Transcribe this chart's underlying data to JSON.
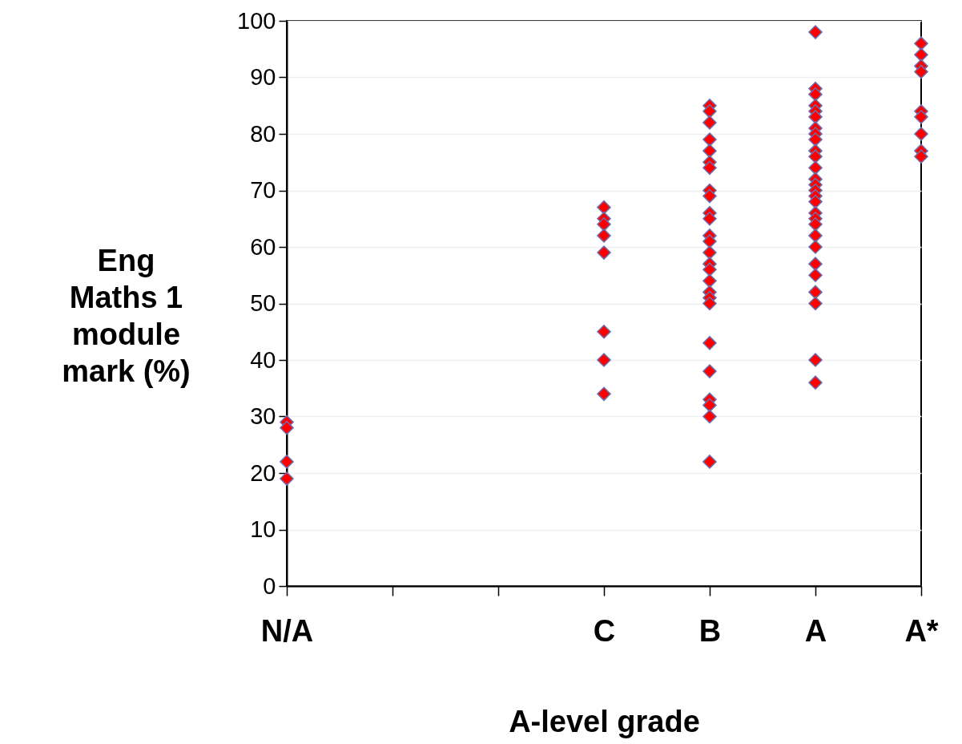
{
  "chart_data": {
    "type": "scatter",
    "xlabel": "A-level grade",
    "ylabel": "Eng\nMaths 1\nmodule\nmark (%)",
    "categories": [
      "N/A",
      null,
      null,
      "C",
      "B",
      "A",
      "A*"
    ],
    "series": [
      {
        "color": "#ff0000",
        "x": [
          "N/A",
          "N/A",
          "N/A",
          "N/A",
          "C",
          "C",
          "C",
          "C",
          "C",
          "C",
          "C",
          "C",
          "B",
          "B",
          "B",
          "B",
          "B",
          "B",
          "B",
          "B",
          "B",
          "B",
          "B",
          "B",
          "B",
          "B",
          "B",
          "B",
          "B",
          "B",
          "B",
          "B",
          "B",
          "B",
          "B",
          "B",
          "B",
          "B",
          "A",
          "A",
          "A",
          "A",
          "A",
          "A",
          "A",
          "A",
          "A",
          "A",
          "A",
          "A",
          "A",
          "A",
          "A",
          "A",
          "A",
          "A",
          "A",
          "A",
          "A",
          "A",
          "A",
          "A",
          "A",
          "A",
          "A",
          "A",
          "A*",
          "A*",
          "A*",
          "A*",
          "A*",
          "A*",
          "A*",
          "A*",
          "A*"
        ],
        "values": [
          29,
          28,
          22,
          19,
          67,
          65,
          64,
          62,
          59,
          45,
          40,
          34,
          85,
          84,
          82,
          79,
          77,
          75,
          74,
          70,
          69,
          66,
          65,
          62,
          61,
          59,
          57,
          56,
          54,
          52,
          51,
          50,
          43,
          38,
          33,
          32,
          30,
          22,
          98,
          88,
          87,
          85,
          84,
          83,
          81,
          80,
          79,
          77,
          76,
          74,
          72,
          71,
          70,
          69,
          68,
          66,
          65,
          64,
          62,
          60,
          57,
          55,
          52,
          50,
          40,
          36,
          96,
          94,
          92,
          91,
          84,
          83,
          80,
          77,
          76
        ]
      }
    ],
    "ylim": [
      0,
      100
    ],
    "yticks": [
      0,
      10,
      20,
      30,
      40,
      50,
      60,
      70,
      80,
      90,
      100
    ],
    "grid": "y",
    "marker": "diamond"
  }
}
